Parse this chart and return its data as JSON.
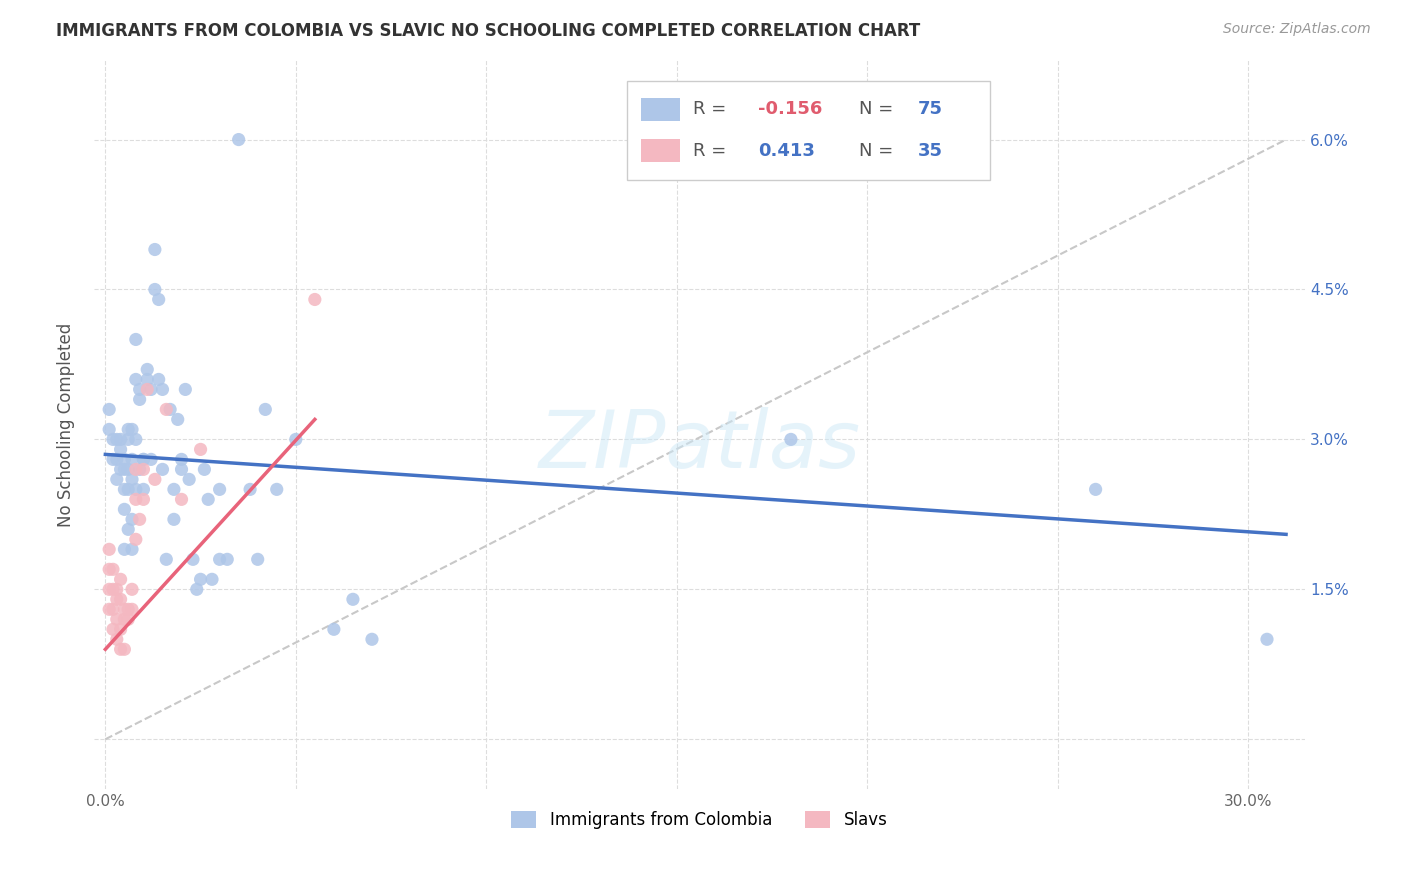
{
  "title": "IMMIGRANTS FROM COLOMBIA VS SLAVIC NO SCHOOLING COMPLETED CORRELATION CHART",
  "source": "Source: ZipAtlas.com",
  "ylabel": "No Schooling Completed",
  "x_ticks": [
    0.0,
    0.05,
    0.1,
    0.15,
    0.2,
    0.25,
    0.3
  ],
  "x_tick_labels": [
    "0.0%",
    "",
    "",
    "",
    "",
    "",
    "30.0%"
  ],
  "y_ticks": [
    0.0,
    0.015,
    0.03,
    0.045,
    0.06
  ],
  "y_tick_labels": [
    "",
    "1.5%",
    "3.0%",
    "4.5%",
    "6.0%"
  ],
  "xlim": [
    -0.003,
    0.315
  ],
  "ylim": [
    -0.005,
    0.068
  ],
  "color_blue": "#aec6e8",
  "color_pink": "#f4b8c1",
  "color_trendline_blue": "#4472c4",
  "color_trendline_pink": "#e8637a",
  "color_trendline_dashed": "#c8c8c8",
  "watermark": "ZIPatlas",
  "legend_labels": [
    "Immigrants from Colombia",
    "Slavs"
  ],
  "blue_scatter_x": [
    0.001,
    0.001,
    0.002,
    0.002,
    0.003,
    0.003,
    0.003,
    0.004,
    0.004,
    0.004,
    0.005,
    0.005,
    0.005,
    0.005,
    0.005,
    0.006,
    0.006,
    0.006,
    0.006,
    0.006,
    0.007,
    0.007,
    0.007,
    0.007,
    0.007,
    0.008,
    0.008,
    0.008,
    0.008,
    0.009,
    0.009,
    0.009,
    0.01,
    0.01,
    0.01,
    0.011,
    0.011,
    0.012,
    0.012,
    0.013,
    0.013,
    0.014,
    0.014,
    0.015,
    0.015,
    0.016,
    0.017,
    0.018,
    0.018,
    0.019,
    0.02,
    0.02,
    0.021,
    0.022,
    0.023,
    0.024,
    0.025,
    0.026,
    0.027,
    0.028,
    0.03,
    0.03,
    0.032,
    0.035,
    0.04,
    0.042,
    0.045,
    0.05,
    0.06,
    0.065,
    0.07,
    0.18,
    0.26,
    0.305,
    0.038
  ],
  "blue_scatter_y": [
    0.031,
    0.033,
    0.028,
    0.03,
    0.03,
    0.028,
    0.026,
    0.03,
    0.029,
    0.027,
    0.028,
    0.027,
    0.025,
    0.023,
    0.019,
    0.031,
    0.03,
    0.027,
    0.025,
    0.021,
    0.031,
    0.028,
    0.026,
    0.022,
    0.019,
    0.04,
    0.036,
    0.03,
    0.025,
    0.035,
    0.034,
    0.027,
    0.028,
    0.028,
    0.025,
    0.037,
    0.036,
    0.035,
    0.028,
    0.049,
    0.045,
    0.044,
    0.036,
    0.035,
    0.027,
    0.018,
    0.033,
    0.025,
    0.022,
    0.032,
    0.028,
    0.027,
    0.035,
    0.026,
    0.018,
    0.015,
    0.016,
    0.027,
    0.024,
    0.016,
    0.025,
    0.018,
    0.018,
    0.06,
    0.018,
    0.033,
    0.025,
    0.03,
    0.011,
    0.014,
    0.01,
    0.03,
    0.025,
    0.01,
    0.025
  ],
  "pink_scatter_x": [
    0.001,
    0.001,
    0.001,
    0.001,
    0.002,
    0.002,
    0.002,
    0.002,
    0.003,
    0.003,
    0.003,
    0.003,
    0.004,
    0.004,
    0.004,
    0.004,
    0.005,
    0.005,
    0.005,
    0.006,
    0.006,
    0.007,
    0.007,
    0.008,
    0.008,
    0.008,
    0.009,
    0.01,
    0.01,
    0.011,
    0.013,
    0.016,
    0.02,
    0.025,
    0.055
  ],
  "pink_scatter_y": [
    0.019,
    0.017,
    0.015,
    0.013,
    0.017,
    0.015,
    0.013,
    0.011,
    0.015,
    0.014,
    0.012,
    0.01,
    0.016,
    0.014,
    0.011,
    0.009,
    0.012,
    0.013,
    0.009,
    0.013,
    0.012,
    0.015,
    0.013,
    0.027,
    0.024,
    0.02,
    0.022,
    0.027,
    0.024,
    0.035,
    0.026,
    0.033,
    0.024,
    0.029,
    0.044
  ],
  "blue_trend_x": [
    0.0,
    0.31
  ],
  "blue_trend_y": [
    0.0285,
    0.0205
  ],
  "pink_trend_x": [
    0.0,
    0.055
  ],
  "pink_trend_y": [
    0.009,
    0.032
  ],
  "dashed_trend_x": [
    0.0,
    0.31
  ],
  "dashed_trend_y": [
    0.0,
    0.06
  ]
}
